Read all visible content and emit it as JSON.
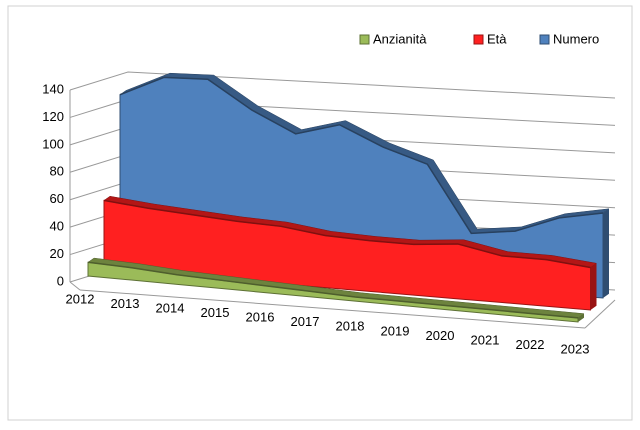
{
  "chart_data": {
    "type": "area3d",
    "categories": [
      "2012",
      "2013",
      "2014",
      "2015",
      "2016",
      "2017",
      "2018",
      "2019",
      "2020",
      "2021",
      "2022",
      "2023"
    ],
    "series": [
      {
        "name": "Anzianità",
        "color": "#9bbb59",
        "values": [
          10,
          9,
          7,
          6,
          5,
          4,
          3,
          3,
          3,
          3,
          3,
          3
        ]
      },
      {
        "name": "Età",
        "color": "#ff2020",
        "values": [
          50,
          47,
          45,
          43,
          42,
          38,
          37,
          37,
          40,
          34,
          34,
          31
        ]
      },
      {
        "name": "Numero",
        "color": "#4f81bd",
        "values": [
          122,
          137,
          138,
          118,
          103,
          112,
          98,
          88,
          40,
          44,
          56,
          62
        ]
      }
    ],
    "ylim": [
      0,
      140
    ],
    "yticks": [
      0,
      20,
      40,
      60,
      80,
      100,
      120,
      140
    ],
    "grid": true,
    "legend": "top-right"
  }
}
